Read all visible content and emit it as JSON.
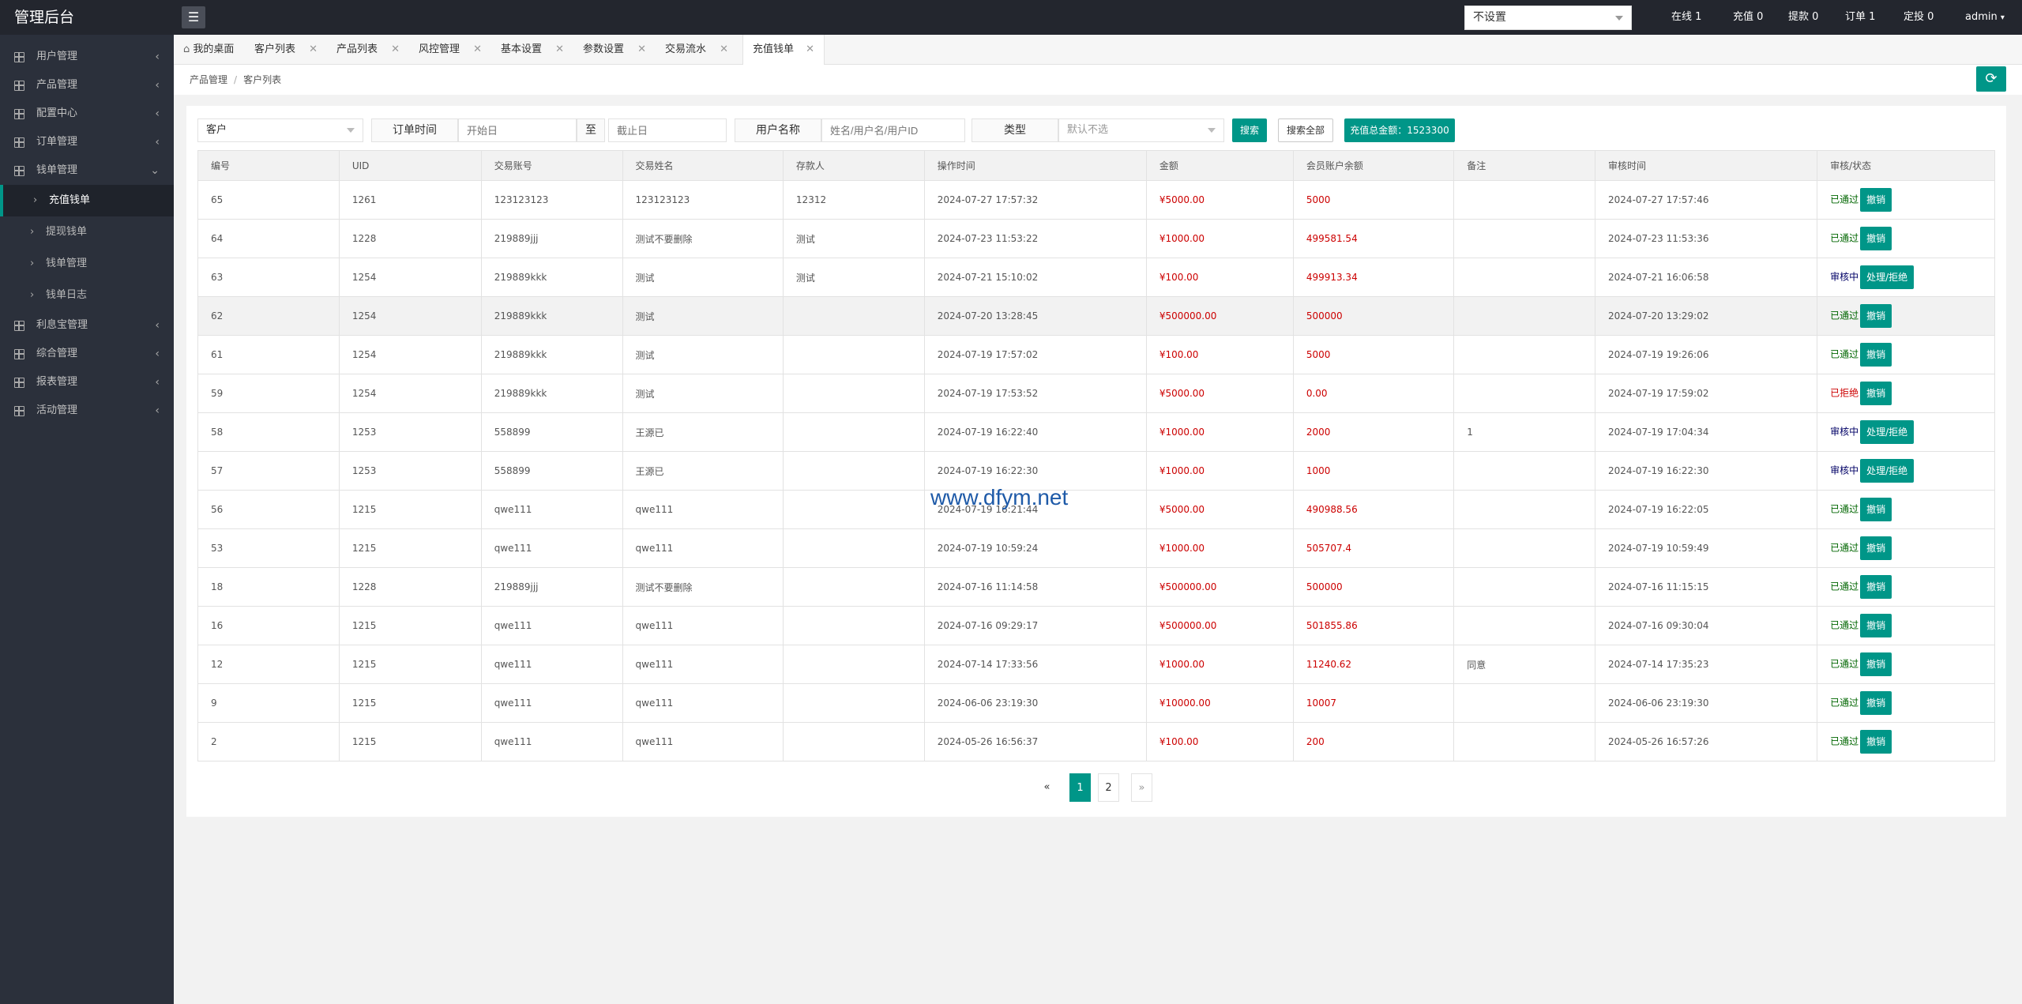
{
  "app": {
    "title": "管理后台",
    "menu_icon": "hamburger-icon"
  },
  "topbar": {
    "select_value": "不设置",
    "stats": [
      "在线 1",
      "充值 0",
      "提款 0",
      "订单 1",
      "定投 0"
    ],
    "user": "admin"
  },
  "sidebar": {
    "items": [
      {
        "label": "用户管理",
        "chev": "‹"
      },
      {
        "label": "产品管理",
        "chev": "‹"
      },
      {
        "label": "配置中心",
        "chev": "‹"
      },
      {
        "label": "订单管理",
        "chev": "‹"
      },
      {
        "label": "钱单管理",
        "chev": "⌄"
      }
    ],
    "subitems": [
      {
        "label": "充值钱单",
        "active": true
      },
      {
        "label": "提现钱单",
        "active": false
      },
      {
        "label": "钱单管理",
        "active": false
      },
      {
        "label": "钱单日志",
        "active": false
      }
    ],
    "items_after": [
      {
        "label": "利息宝管理",
        "chev": "‹"
      },
      {
        "label": "综合管理",
        "chev": "‹"
      },
      {
        "label": "报表管理",
        "chev": "‹"
      },
      {
        "label": "活动管理",
        "chev": "‹"
      }
    ]
  },
  "tabs": [
    {
      "label": "我的桌面",
      "closable": false,
      "icon": "home-icon"
    },
    {
      "label": "客户列表",
      "closable": true
    },
    {
      "label": "产品列表",
      "closable": true
    },
    {
      "label": "风控管理",
      "closable": true
    },
    {
      "label": "基本设置",
      "closable": true
    },
    {
      "label": "参数设置",
      "closable": true
    },
    {
      "label": "交易流水",
      "closable": true
    },
    {
      "label": "充值钱单",
      "closable": true,
      "active": true
    }
  ],
  "breadcrumb": {
    "items": [
      "产品管理",
      "客户列表"
    ],
    "sep": "/"
  },
  "filters": {
    "customer_select": "客户",
    "order_time_label": "订单时间",
    "start_placeholder": "开始日",
    "to_label": "至",
    "end_placeholder": "截止日",
    "username_label": "用户名称",
    "username_placeholder": "姓名/用户名/用户ID",
    "type_label": "类型",
    "type_select": "默认不选",
    "search_btn": "搜索",
    "search_all_btn": "搜索全部",
    "total_btn": "充值总金额：1523300"
  },
  "table": {
    "headers": [
      "编号",
      "UID",
      "交易账号",
      "交易姓名",
      "存款人",
      "操作时间",
      "金额",
      "会员账户余额",
      "备注",
      "审核时间",
      "审核/状态"
    ],
    "rows": [
      {
        "id": "65",
        "uid": "1261",
        "account": "123123123",
        "name": "123123123",
        "depositor": "12312",
        "op_time": "2024-07-27 17:57:32",
        "amount": "¥5000.00",
        "balance": "5000",
        "note": "",
        "audit_time": "2024-07-27 17:57:46",
        "status": "已通过",
        "status_type": "ok",
        "action": "撤销"
      },
      {
        "id": "64",
        "uid": "1228",
        "account": "219889jjj",
        "name": "测试不要删除",
        "depositor": "测试",
        "op_time": "2024-07-23 11:53:22",
        "amount": "¥1000.00",
        "balance": "499581.54",
        "note": "",
        "audit_time": "2024-07-23 11:53:36",
        "status": "已通过",
        "status_type": "ok",
        "action": "撤销"
      },
      {
        "id": "63",
        "uid": "1254",
        "account": "219889kkk",
        "name": "测试",
        "depositor": "测试",
        "op_time": "2024-07-21 15:10:02",
        "amount": "¥100.00",
        "balance": "499913.34",
        "note": "",
        "audit_time": "2024-07-21 16:06:58",
        "status": "审核中",
        "status_type": "pend",
        "action": "处理/拒绝"
      },
      {
        "id": "62",
        "uid": "1254",
        "account": "219889kkk",
        "name": "测试",
        "depositor": "",
        "op_time": "2024-07-20 13:28:45",
        "amount": "¥500000.00",
        "balance": "500000",
        "note": "",
        "audit_time": "2024-07-20 13:29:02",
        "status": "已通过",
        "status_type": "ok",
        "action": "撤销",
        "highlight": true
      },
      {
        "id": "61",
        "uid": "1254",
        "account": "219889kkk",
        "name": "测试",
        "depositor": "",
        "op_time": "2024-07-19 17:57:02",
        "amount": "¥100.00",
        "balance": "5000",
        "note": "",
        "audit_time": "2024-07-19 19:26:06",
        "status": "已通过",
        "status_type": "ok",
        "action": "撤销"
      },
      {
        "id": "59",
        "uid": "1254",
        "account": "219889kkk",
        "name": "测试",
        "depositor": "",
        "op_time": "2024-07-19 17:53:52",
        "amount": "¥5000.00",
        "balance": "0.00",
        "note": "",
        "audit_time": "2024-07-19 17:59:02",
        "status": "已拒绝",
        "status_type": "rej",
        "action": "撤销"
      },
      {
        "id": "58",
        "uid": "1253",
        "account": "558899",
        "name": "王源已",
        "depositor": "",
        "op_time": "2024-07-19 16:22:40",
        "amount": "¥1000.00",
        "balance": "2000",
        "note": "1",
        "audit_time": "2024-07-19 17:04:34",
        "status": "审核中",
        "status_type": "pend",
        "action": "处理/拒绝"
      },
      {
        "id": "57",
        "uid": "1253",
        "account": "558899",
        "name": "王源已",
        "depositor": "",
        "op_time": "2024-07-19 16:22:30",
        "amount": "¥1000.00",
        "balance": "1000",
        "note": "",
        "audit_time": "2024-07-19 16:22:30",
        "status": "审核中",
        "status_type": "pend",
        "action": "处理/拒绝"
      },
      {
        "id": "56",
        "uid": "1215",
        "account": "qwe111",
        "name": "qwe111",
        "depositor": "",
        "op_time": "2024-07-19 16:21:44",
        "amount": "¥5000.00",
        "balance": "490988.56",
        "note": "",
        "audit_time": "2024-07-19 16:22:05",
        "status": "已通过",
        "status_type": "ok",
        "action": "撤销"
      },
      {
        "id": "53",
        "uid": "1215",
        "account": "qwe111",
        "name": "qwe111",
        "depositor": "",
        "op_time": "2024-07-19 10:59:24",
        "amount": "¥1000.00",
        "balance": "505707.4",
        "note": "",
        "audit_time": "2024-07-19 10:59:49",
        "status": "已通过",
        "status_type": "ok",
        "action": "撤销"
      },
      {
        "id": "18",
        "uid": "1228",
        "account": "219889jjj",
        "name": "测试不要删除",
        "depositor": "",
        "op_time": "2024-07-16 11:14:58",
        "amount": "¥500000.00",
        "balance": "500000",
        "note": "",
        "audit_time": "2024-07-16 11:15:15",
        "status": "已通过",
        "status_type": "ok",
        "action": "撤销"
      },
      {
        "id": "16",
        "uid": "1215",
        "account": "qwe111",
        "name": "qwe111",
        "depositor": "",
        "op_time": "2024-07-16 09:29:17",
        "amount": "¥500000.00",
        "balance": "501855.86",
        "note": "",
        "audit_time": "2024-07-16 09:30:04",
        "status": "已通过",
        "status_type": "ok",
        "action": "撤销"
      },
      {
        "id": "12",
        "uid": "1215",
        "account": "qwe111",
        "name": "qwe111",
        "depositor": "",
        "op_time": "2024-07-14 17:33:56",
        "amount": "¥1000.00",
        "balance": "11240.62",
        "note": "同意",
        "audit_time": "2024-07-14 17:35:23",
        "status": "已通过",
        "status_type": "ok",
        "action": "撤销"
      },
      {
        "id": "9",
        "uid": "1215",
        "account": "qwe111",
        "name": "qwe111",
        "depositor": "",
        "op_time": "2024-06-06 23:19:30",
        "amount": "¥10000.00",
        "balance": "10007",
        "note": "",
        "audit_time": "2024-06-06 23:19:30",
        "status": "已通过",
        "status_type": "ok",
        "action": "撤销"
      },
      {
        "id": "2",
        "uid": "1215",
        "account": "qwe111",
        "name": "qwe111",
        "depositor": "",
        "op_time": "2024-05-26 16:56:37",
        "amount": "¥100.00",
        "balance": "200",
        "note": "",
        "audit_time": "2024-05-26 16:57:26",
        "status": "已通过",
        "status_type": "ok",
        "action": "撤销"
      }
    ]
  },
  "pager": {
    "prev": "«",
    "pages": [
      "1",
      "2"
    ],
    "current": "1",
    "next": "»"
  },
  "watermark": "www.dfym.net",
  "colors": {
    "accent": "#009688",
    "sidebar": "#2b303b",
    "topbar": "#23262e",
    "amount": "#cc0000"
  }
}
